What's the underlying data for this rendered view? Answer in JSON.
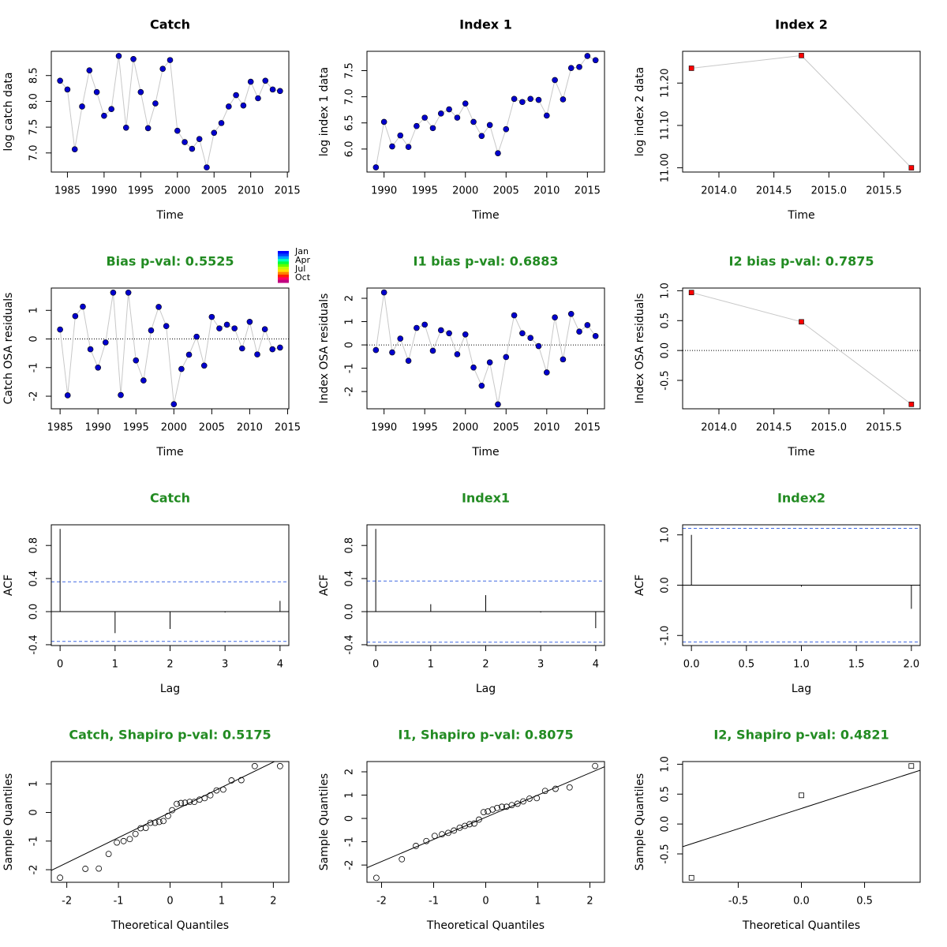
{
  "chart_data": [
    {
      "type": "line",
      "title": "Catch",
      "title_color": "#000000",
      "xlabel": "Time",
      "ylabel": "log catch data",
      "marker": "circle",
      "color": "#0000cd",
      "line_color": "#c8c8c8",
      "x": [
        1984,
        1985,
        1986,
        1987,
        1988,
        1989,
        1990,
        1991,
        1992,
        1993,
        1994,
        1995,
        1996,
        1997,
        1998,
        1999,
        2000,
        2001,
        2002,
        2003,
        2004,
        2005,
        2006,
        2007,
        2008,
        2009,
        2010,
        2011,
        2012,
        2013,
        2014
      ],
      "values": [
        8.4,
        8.23,
        7.07,
        7.9,
        8.6,
        8.18,
        7.72,
        7.85,
        8.88,
        7.49,
        8.82,
        8.18,
        7.48,
        7.96,
        8.63,
        8.8,
        7.43,
        7.21,
        7.08,
        7.27,
        6.72,
        7.39,
        7.58,
        7.9,
        8.12,
        7.92,
        8.38,
        8.06,
        8.4,
        8.23,
        8.2
      ],
      "xlim": [
        1982.8,
        2015.2
      ],
      "ylim": [
        6.63,
        8.97
      ],
      "xticks": [
        1985,
        1990,
        1995,
        2000,
        2005,
        2010,
        2015
      ],
      "yticks": [
        {
          "value": 7,
          "label": "7.0"
        },
        7.5,
        {
          "value": 8,
          "label": "8.0"
        },
        8.5
      ]
    },
    {
      "type": "line",
      "title": "Index 1",
      "title_color": "#000000",
      "xlabel": "Time",
      "ylabel": "log index 1 data",
      "marker": "circle",
      "color": "#0000cd",
      "line_color": "#c8c8c8",
      "x": [
        1989,
        1990,
        1991,
        1992,
        1993,
        1994,
        1995,
        1996,
        1997,
        1998,
        1999,
        2000,
        2001,
        2002,
        2003,
        2004,
        2005,
        2006,
        2007,
        2008,
        2009,
        2010,
        2011,
        2012,
        2013,
        2014,
        2015,
        2016
      ],
      "values": [
        5.65,
        6.52,
        6.05,
        6.26,
        6.04,
        6.44,
        6.6,
        6.4,
        6.68,
        6.76,
        6.6,
        6.87,
        6.52,
        6.25,
        6.46,
        5.92,
        6.38,
        6.96,
        6.9,
        6.96,
        6.94,
        6.64,
        7.32,
        6.95,
        7.55,
        7.57,
        7.78,
        7.7
      ],
      "xlim": [
        1987.9,
        2017.1
      ],
      "ylim": [
        5.56,
        7.87
      ],
      "xticks": [
        1990,
        1995,
        2000,
        2005,
        2010,
        2015
      ],
      "yticks": [
        {
          "value": 6,
          "label": "6.0"
        },
        6.5,
        {
          "value": 7,
          "label": "7.0"
        },
        7.5
      ]
    },
    {
      "type": "line",
      "title": "Index 2",
      "title_color": "#000000",
      "xlabel": "Time",
      "ylabel": "log index 2 data",
      "marker": "square",
      "color": "#ff0000",
      "line_color": "#c8c8c8",
      "x": [
        2013.75,
        2014.75,
        2015.75
      ],
      "values": [
        11.235,
        11.265,
        11.0
      ],
      "xlim": [
        2013.67,
        2015.83
      ],
      "ylim": [
        10.99,
        11.275
      ],
      "xticks": [
        {
          "value": 2014,
          "label": "2014.0"
        },
        2014.5,
        {
          "value": 2015,
          "label": "2015.0"
        },
        2015.5
      ],
      "yticks": [
        {
          "value": 11,
          "label": "11.00"
        },
        {
          "value": 11.1,
          "label": "11.10"
        },
        {
          "value": 11.2,
          "label": "11.20"
        }
      ]
    },
    {
      "type": "line",
      "title": "Bias p-val: 0.5525",
      "title_color": "#228b22",
      "xlabel": "Time",
      "ylabel": "Catch OSA residuals",
      "marker": "circle",
      "color": "#0000cd",
      "line_color": "#c8c8c8",
      "reference_line": 0,
      "legend_labels": [
        "Jan",
        "Apr",
        "Jul",
        "Oct"
      ],
      "x": [
        1985,
        1986,
        1987,
        1988,
        1989,
        1990,
        1991,
        1992,
        1993,
        1994,
        1995,
        1996,
        1997,
        1998,
        1999,
        2000,
        2001,
        2002,
        2003,
        2004,
        2005,
        2006,
        2007,
        2008,
        2009,
        2010,
        2011,
        2012,
        2013,
        2014
      ],
      "values": [
        0.33,
        -1.97,
        0.8,
        1.13,
        -0.36,
        -1.0,
        -0.12,
        1.62,
        -1.96,
        1.62,
        -0.75,
        -1.45,
        0.3,
        1.12,
        0.45,
        -2.28,
        -1.05,
        -0.55,
        0.08,
        -0.93,
        0.77,
        0.37,
        0.5,
        0.37,
        -0.33,
        0.6,
        -0.54,
        0.34,
        -0.36,
        -0.3
      ],
      "xlim": [
        1983.84,
        2015.16
      ],
      "ylim": [
        -2.44,
        1.78
      ],
      "xticks": [
        1985,
        1990,
        1995,
        2000,
        2005,
        2010,
        2015
      ],
      "yticks": [
        -2,
        -1,
        0,
        1
      ]
    },
    {
      "type": "line",
      "title": "I1 bias p-val: 0.6883",
      "title_color": "#228b22",
      "xlabel": "Time",
      "ylabel": "Index OSA residuals",
      "marker": "circle",
      "color": "#0000cd",
      "line_color": "#c8c8c8",
      "reference_line": 0,
      "x": [
        1989,
        1990,
        1991,
        1992,
        1993,
        1994,
        1995,
        1996,
        1997,
        1998,
        1999,
        2000,
        2001,
        2002,
        2003,
        2004,
        2005,
        2006,
        2007,
        2008,
        2009,
        2010,
        2011,
        2012,
        2013,
        2014,
        2015,
        2016
      ],
      "values": [
        -0.22,
        2.25,
        -0.32,
        0.27,
        -0.68,
        0.73,
        0.87,
        -0.25,
        0.63,
        0.5,
        -0.4,
        0.45,
        -0.97,
        -1.75,
        -0.75,
        -2.55,
        -0.52,
        1.27,
        0.5,
        0.3,
        -0.05,
        -1.18,
        1.18,
        -0.62,
        1.33,
        0.57,
        0.85,
        0.38
      ],
      "xlim": [
        1987.9,
        2017.1
      ],
      "ylim": [
        -2.74,
        2.44
      ],
      "xticks": [
        1990,
        1995,
        2000,
        2005,
        2010,
        2015
      ],
      "yticks": [
        -2,
        -1,
        0,
        1,
        2
      ]
    },
    {
      "type": "line",
      "title": "I2 bias p-val: 0.7875",
      "title_color": "#228b22",
      "xlabel": "Time",
      "ylabel": "Index OSA residuals",
      "marker": "square",
      "color": "#ff0000",
      "line_color": "#c8c8c8",
      "reference_line": 0,
      "x": [
        2013.75,
        2014.75,
        2015.75
      ],
      "values": [
        0.97,
        0.48,
        -0.9
      ],
      "xlim": [
        2013.67,
        2015.83
      ],
      "ylim": [
        -0.975,
        1.045
      ],
      "xticks": [
        {
          "value": 2014,
          "label": "2014.0"
        },
        2014.5,
        {
          "value": 2015,
          "label": "2015.0"
        },
        2015.5
      ],
      "yticks": [
        -0.5,
        {
          "value": 0,
          "label": "0.0"
        },
        0.5,
        {
          "value": 1,
          "label": "1.0"
        }
      ]
    },
    {
      "type": "stem",
      "title": "Catch",
      "title_color": "#228b22",
      "xlabel": "Lag",
      "ylabel": "ACF",
      "color": "#000000",
      "reference_line": 0,
      "ci_lines": [
        0.36,
        -0.36
      ],
      "ci_color": "#4169e1",
      "x": [
        0,
        1,
        2,
        3,
        4
      ],
      "values": [
        1.0,
        -0.26,
        -0.21,
        -0.01,
        0.13
      ],
      "xlim": [
        -0.16,
        4.16
      ],
      "ylim": [
        -0.41,
        1.05
      ],
      "xticks": [
        0,
        1,
        2,
        3,
        4
      ],
      "yticks": [
        -0.4,
        {
          "value": 0,
          "label": "0.0"
        },
        0.4,
        0.8
      ]
    },
    {
      "type": "stem",
      "title": "Index1",
      "title_color": "#228b22",
      "xlabel": "Lag",
      "ylabel": "ACF",
      "color": "#000000",
      "reference_line": 0,
      "ci_lines": [
        0.37,
        -0.37
      ],
      "ci_color": "#4169e1",
      "x": [
        0,
        1,
        2,
        3,
        4
      ],
      "values": [
        1.0,
        0.09,
        0.2,
        -0.01,
        -0.2
      ],
      "xlim": [
        -0.16,
        4.16
      ],
      "ylim": [
        -0.41,
        1.05
      ],
      "xticks": [
        0,
        1,
        2,
        3,
        4
      ],
      "yticks": [
        -0.4,
        {
          "value": 0,
          "label": "0.0"
        },
        0.4,
        0.8
      ]
    },
    {
      "type": "stem",
      "title": "Index2",
      "title_color": "#228b22",
      "xlabel": "Lag",
      "ylabel": "ACF",
      "color": "#000000",
      "reference_line": 0,
      "ci_lines": [
        1.13,
        -1.13
      ],
      "ci_color": "#4169e1",
      "x": [
        0,
        1,
        2
      ],
      "values": [
        1.0,
        -0.03,
        -0.47
      ],
      "xlim": [
        -0.08,
        2.08
      ],
      "ylim": [
        -1.2,
        1.2
      ],
      "xticks": [
        {
          "value": 0,
          "label": "0.0"
        },
        0.5,
        {
          "value": 1,
          "label": "1.0"
        },
        1.5,
        {
          "value": 2,
          "label": "2.0"
        }
      ],
      "yticks": [
        {
          "value": -1,
          "label": "-1.0"
        },
        {
          "value": 0,
          "label": "0.0"
        },
        {
          "value": 1,
          "label": "1.0"
        }
      ]
    },
    {
      "type": "scatter",
      "title": "Catch, Shapiro p-val: 0.5175",
      "title_color": "#228b22",
      "xlabel": "Theoretical Quantiles",
      "ylabel": "Sample Quantiles",
      "marker": "circle",
      "color": "#000000",
      "qqline": {
        "intercept": 0.0,
        "slope": 0.88
      },
      "x": [
        -2.13,
        -1.64,
        -1.38,
        -1.19,
        -1.03,
        -0.9,
        -0.78,
        -0.67,
        -0.57,
        -0.47,
        -0.38,
        -0.29,
        -0.21,
        -0.13,
        -0.04,
        0.04,
        0.13,
        0.21,
        0.29,
        0.38,
        0.47,
        0.57,
        0.67,
        0.78,
        0.9,
        1.03,
        1.19,
        1.38,
        1.64,
        2.13
      ],
      "values": [
        -2.28,
        -1.97,
        -1.96,
        -1.45,
        -1.05,
        -1.0,
        -0.93,
        -0.75,
        -0.55,
        -0.54,
        -0.36,
        -0.36,
        -0.33,
        -0.3,
        -0.12,
        0.08,
        0.3,
        0.33,
        0.34,
        0.37,
        0.37,
        0.45,
        0.5,
        0.6,
        0.77,
        0.8,
        1.12,
        1.13,
        1.62,
        1.62
      ],
      "xlim": [
        -2.3,
        2.3
      ],
      "ylim": [
        -2.44,
        1.78
      ],
      "xticks": [
        -2,
        -1,
        0,
        1,
        2
      ],
      "yticks": [
        -2,
        -1,
        0,
        1
      ]
    },
    {
      "type": "scatter",
      "title": "I1, Shapiro p-val: 0.8075",
      "title_color": "#228b22",
      "xlabel": "Theoretical Quantiles",
      "ylabel": "Sample Quantiles",
      "marker": "circle",
      "color": "#000000",
      "qqline": {
        "intercept": 0.05,
        "slope": 0.95
      },
      "x": [
        -2.1,
        -1.61,
        -1.34,
        -1.14,
        -0.98,
        -0.84,
        -0.72,
        -0.61,
        -0.5,
        -0.4,
        -0.31,
        -0.22,
        -0.13,
        -0.04,
        0.04,
        0.13,
        0.22,
        0.31,
        0.4,
        0.5,
        0.61,
        0.72,
        0.84,
        0.98,
        1.14,
        1.34,
        1.61,
        2.1
      ],
      "values": [
        -2.55,
        -1.75,
        -1.18,
        -0.97,
        -0.75,
        -0.68,
        -0.62,
        -0.52,
        -0.4,
        -0.32,
        -0.25,
        -0.22,
        -0.05,
        0.27,
        0.3,
        0.38,
        0.45,
        0.5,
        0.5,
        0.57,
        0.63,
        0.73,
        0.85,
        0.87,
        1.18,
        1.27,
        1.33,
        2.25
      ],
      "xlim": [
        -2.28,
        2.28
      ],
      "ylim": [
        -2.74,
        2.44
      ],
      "xticks": [
        -2,
        -1,
        0,
        1,
        2
      ],
      "yticks": [
        -2,
        -1,
        0,
        1,
        2
      ]
    },
    {
      "type": "scatter",
      "title": "I2, Shapiro p-val: 0.4821",
      "title_color": "#228b22",
      "xlabel": "Theoretical Quantiles",
      "ylabel": "Sample Quantiles",
      "marker": "square",
      "color": "#000000",
      "qqline": {
        "intercept": 0.26,
        "slope": 0.68
      },
      "x": [
        -0.87,
        0,
        0.87
      ],
      "values": [
        -0.9,
        0.48,
        0.97
      ],
      "xlim": [
        -0.94,
        0.94
      ],
      "ylim": [
        -0.975,
        1.045
      ],
      "xticks": [
        -0.5,
        {
          "value": 0,
          "label": "0.0"
        },
        0.5
      ],
      "yticks": [
        -0.5,
        {
          "value": 0,
          "label": "0.0"
        },
        0.5,
        {
          "value": 1,
          "label": "1.0"
        }
      ]
    }
  ]
}
